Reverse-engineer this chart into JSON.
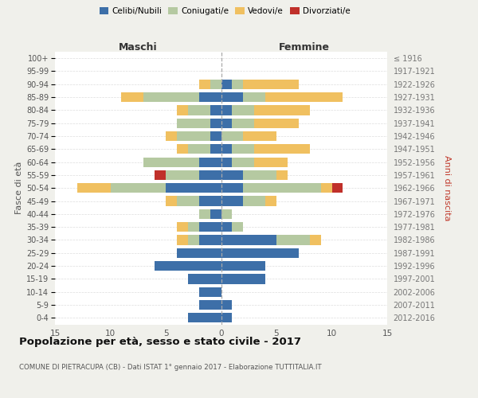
{
  "age_groups": [
    "0-4",
    "5-9",
    "10-14",
    "15-19",
    "20-24",
    "25-29",
    "30-34",
    "35-39",
    "40-44",
    "45-49",
    "50-54",
    "55-59",
    "60-64",
    "65-69",
    "70-74",
    "75-79",
    "80-84",
    "85-89",
    "90-94",
    "95-99",
    "100+"
  ],
  "birth_years": [
    "2012-2016",
    "2007-2011",
    "2002-2006",
    "1997-2001",
    "1992-1996",
    "1987-1991",
    "1982-1986",
    "1977-1981",
    "1972-1976",
    "1967-1971",
    "1962-1966",
    "1957-1961",
    "1952-1956",
    "1947-1951",
    "1942-1946",
    "1937-1941",
    "1932-1936",
    "1927-1931",
    "1922-1926",
    "1917-1921",
    "≤ 1916"
  ],
  "maschi": {
    "celibi": [
      3,
      2,
      2,
      3,
      6,
      4,
      2,
      2,
      1,
      2,
      5,
      2,
      2,
      1,
      1,
      1,
      1,
      2,
      0,
      0,
      0
    ],
    "coniugati": [
      0,
      0,
      0,
      0,
      0,
      0,
      1,
      1,
      1,
      2,
      5,
      3,
      5,
      2,
      3,
      3,
      2,
      5,
      1,
      0,
      0
    ],
    "vedovi": [
      0,
      0,
      0,
      0,
      0,
      0,
      1,
      1,
      0,
      1,
      3,
      0,
      0,
      1,
      1,
      0,
      1,
      2,
      1,
      0,
      0
    ],
    "divorziati": [
      0,
      0,
      0,
      0,
      0,
      0,
      0,
      0,
      0,
      0,
      0,
      1,
      0,
      0,
      0,
      0,
      0,
      0,
      0,
      0,
      0
    ]
  },
  "femmine": {
    "nubili": [
      1,
      1,
      0,
      4,
      4,
      7,
      5,
      1,
      0,
      2,
      2,
      2,
      1,
      1,
      0,
      1,
      1,
      2,
      1,
      0,
      0
    ],
    "coniugate": [
      0,
      0,
      0,
      0,
      0,
      0,
      3,
      1,
      1,
      2,
      7,
      3,
      2,
      2,
      2,
      2,
      2,
      2,
      1,
      0,
      0
    ],
    "vedove": [
      0,
      0,
      0,
      0,
      0,
      0,
      1,
      0,
      0,
      1,
      1,
      1,
      3,
      5,
      3,
      4,
      5,
      7,
      5,
      0,
      0
    ],
    "divorziate": [
      0,
      0,
      0,
      0,
      0,
      0,
      0,
      0,
      0,
      0,
      1,
      0,
      0,
      0,
      0,
      0,
      0,
      0,
      0,
      0,
      0
    ]
  },
  "colors": {
    "celibi": "#3d6fa8",
    "coniugati": "#b5c9a1",
    "vedovi": "#f0c060",
    "divorziati": "#c0302a"
  },
  "title": "Popolazione per età, sesso e stato civile - 2017",
  "subtitle": "COMUNE DI PIETRACUPA (CB) - Dati ISTAT 1° gennaio 2017 - Elaborazione TUTTITALIA.IT",
  "xlabel_left": "Maschi",
  "xlabel_right": "Femmine",
  "ylabel_left": "Fasce di età",
  "ylabel_right": "Anni di nascita",
  "xlim": 15,
  "bg_color": "#f0f0eb",
  "plot_bg": "#ffffff"
}
